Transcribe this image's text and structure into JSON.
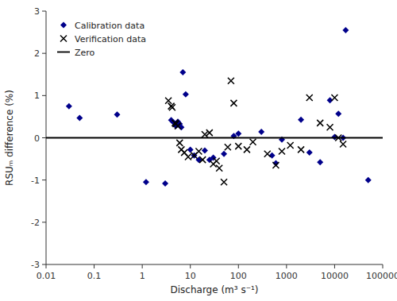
{
  "chart_data": {
    "type": "scatter",
    "xlabel": "Discharge (m³ s⁻¹)",
    "ylabel": "RSUₘ difference (%)",
    "log": "x",
    "xlim": [
      0.01,
      100000
    ],
    "xticks": [
      0.01,
      0.1,
      1,
      10,
      100,
      1000,
      10000,
      100000
    ],
    "ylim": [
      -3.0,
      3.0
    ],
    "yticks": [
      -3.0,
      -2.0,
      -1.0,
      0.0,
      1.0,
      2.0,
      3.0
    ],
    "grid": false,
    "legend": "upper left",
    "series": [
      {
        "name": "Calibration data",
        "color": "#00008B",
        "marker": "diamond",
        "x": [
          0.03,
          0.05,
          0.3,
          1.2,
          3.0,
          4.0,
          4.5,
          5.0,
          5.2,
          5.5,
          6.0,
          6.5,
          7.0,
          8.0,
          10.0,
          12.0,
          15.0,
          20.0,
          25.0,
          30.0,
          50.0,
          80.0,
          100.0,
          300.0,
          500.0,
          600.0,
          800.0,
          2000.0,
          3000.0,
          5000.0,
          8000.0,
          10000.0,
          12000.0,
          15000.0,
          17000.0,
          50000.0
        ],
        "values": [
          0.75,
          0.47,
          0.55,
          -1.05,
          -1.08,
          0.42,
          0.36,
          0.28,
          0.3,
          0.38,
          0.33,
          0.25,
          1.55,
          1.03,
          -0.28,
          -0.42,
          -0.52,
          -0.3,
          -0.52,
          -0.47,
          -0.38,
          0.04,
          0.1,
          0.14,
          -0.42,
          -0.6,
          -0.04,
          0.43,
          -0.35,
          -0.58,
          0.89,
          0.02,
          0.57,
          0.0,
          2.55,
          -1.0
        ]
      },
      {
        "name": "Verification data",
        "color": "#000000",
        "marker": "x",
        "x": [
          3.5,
          4.0,
          4.2,
          4.8,
          5.0,
          5.5,
          6.0,
          6.5,
          7.5,
          9.0,
          12.0,
          15.0,
          18.0,
          20.0,
          25.0,
          30.0,
          35.0,
          40.0,
          50.0,
          60.0,
          70.0,
          80.0,
          100.0,
          150.0,
          200.0,
          400.0,
          600.0,
          800.0,
          1200.0,
          2000.0,
          3000.0,
          5000.0,
          8000.0,
          10000.0,
          12000.0,
          15000.0
        ],
        "values": [
          0.88,
          0.75,
          0.72,
          0.35,
          0.33,
          0.28,
          -0.12,
          -0.28,
          -0.35,
          -0.45,
          -0.42,
          -0.32,
          -0.52,
          0.08,
          0.12,
          -0.62,
          -0.55,
          -0.72,
          -1.05,
          -0.22,
          1.35,
          0.82,
          -0.2,
          -0.28,
          -0.1,
          -0.38,
          -0.65,
          -0.32,
          -0.18,
          -0.28,
          0.95,
          0.35,
          0.25,
          0.95,
          0.0,
          -0.15
        ]
      },
      {
        "name": "Zero",
        "type": "hline",
        "color": "#000000",
        "values": [
          0.0
        ]
      }
    ]
  }
}
